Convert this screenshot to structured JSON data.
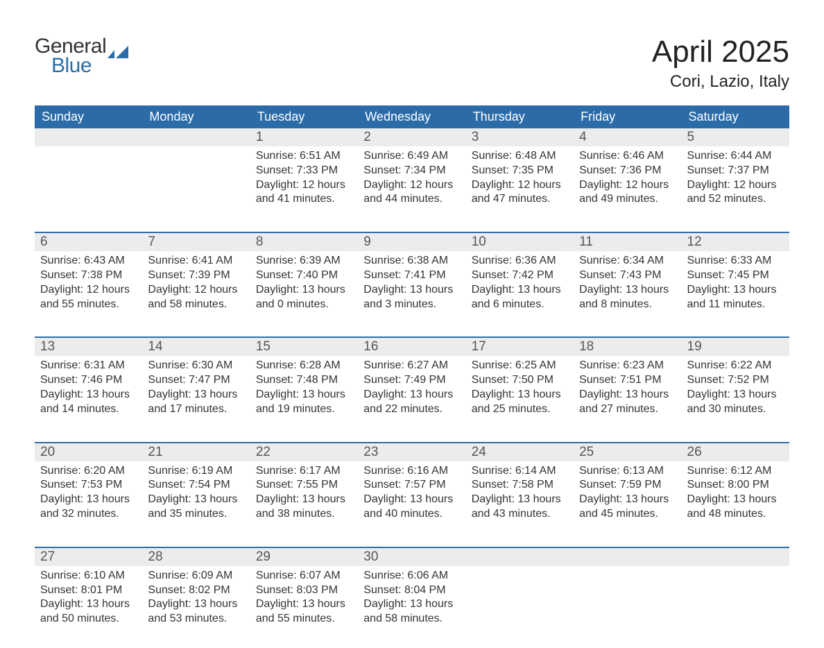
{
  "logo": {
    "text1": "General",
    "text2": "Blue",
    "icon_color": "#2b6ca8"
  },
  "title": "April 2025",
  "location": "Cori, Lazio, Italy",
  "colors": {
    "header_bg": "#2b6ca8",
    "header_text": "#ffffff",
    "daynum_bg": "#ececec",
    "daynum_text": "#555555",
    "body_text": "#333333",
    "week_sep": "#2b6ca8",
    "page_bg": "#ffffff"
  },
  "fonts": {
    "title_size": 44,
    "location_size": 24,
    "dow_size": 18,
    "daynum_size": 19,
    "cell_size": 16
  },
  "dow": [
    "Sunday",
    "Monday",
    "Tuesday",
    "Wednesday",
    "Thursday",
    "Friday",
    "Saturday"
  ],
  "weeks": [
    [
      null,
      null,
      {
        "n": "1",
        "sr": "6:51 AM",
        "ss": "7:33 PM",
        "dl": "12 hours and 41 minutes."
      },
      {
        "n": "2",
        "sr": "6:49 AM",
        "ss": "7:34 PM",
        "dl": "12 hours and 44 minutes."
      },
      {
        "n": "3",
        "sr": "6:48 AM",
        "ss": "7:35 PM",
        "dl": "12 hours and 47 minutes."
      },
      {
        "n": "4",
        "sr": "6:46 AM",
        "ss": "7:36 PM",
        "dl": "12 hours and 49 minutes."
      },
      {
        "n": "5",
        "sr": "6:44 AM",
        "ss": "7:37 PM",
        "dl": "12 hours and 52 minutes."
      }
    ],
    [
      {
        "n": "6",
        "sr": "6:43 AM",
        "ss": "7:38 PM",
        "dl": "12 hours and 55 minutes."
      },
      {
        "n": "7",
        "sr": "6:41 AM",
        "ss": "7:39 PM",
        "dl": "12 hours and 58 minutes."
      },
      {
        "n": "8",
        "sr": "6:39 AM",
        "ss": "7:40 PM",
        "dl": "13 hours and 0 minutes."
      },
      {
        "n": "9",
        "sr": "6:38 AM",
        "ss": "7:41 PM",
        "dl": "13 hours and 3 minutes."
      },
      {
        "n": "10",
        "sr": "6:36 AM",
        "ss": "7:42 PM",
        "dl": "13 hours and 6 minutes."
      },
      {
        "n": "11",
        "sr": "6:34 AM",
        "ss": "7:43 PM",
        "dl": "13 hours and 8 minutes."
      },
      {
        "n": "12",
        "sr": "6:33 AM",
        "ss": "7:45 PM",
        "dl": "13 hours and 11 minutes."
      }
    ],
    [
      {
        "n": "13",
        "sr": "6:31 AM",
        "ss": "7:46 PM",
        "dl": "13 hours and 14 minutes."
      },
      {
        "n": "14",
        "sr": "6:30 AM",
        "ss": "7:47 PM",
        "dl": "13 hours and 17 minutes."
      },
      {
        "n": "15",
        "sr": "6:28 AM",
        "ss": "7:48 PM",
        "dl": "13 hours and 19 minutes."
      },
      {
        "n": "16",
        "sr": "6:27 AM",
        "ss": "7:49 PM",
        "dl": "13 hours and 22 minutes."
      },
      {
        "n": "17",
        "sr": "6:25 AM",
        "ss": "7:50 PM",
        "dl": "13 hours and 25 minutes."
      },
      {
        "n": "18",
        "sr": "6:23 AM",
        "ss": "7:51 PM",
        "dl": "13 hours and 27 minutes."
      },
      {
        "n": "19",
        "sr": "6:22 AM",
        "ss": "7:52 PM",
        "dl": "13 hours and 30 minutes."
      }
    ],
    [
      {
        "n": "20",
        "sr": "6:20 AM",
        "ss": "7:53 PM",
        "dl": "13 hours and 32 minutes."
      },
      {
        "n": "21",
        "sr": "6:19 AM",
        "ss": "7:54 PM",
        "dl": "13 hours and 35 minutes."
      },
      {
        "n": "22",
        "sr": "6:17 AM",
        "ss": "7:55 PM",
        "dl": "13 hours and 38 minutes."
      },
      {
        "n": "23",
        "sr": "6:16 AM",
        "ss": "7:57 PM",
        "dl": "13 hours and 40 minutes."
      },
      {
        "n": "24",
        "sr": "6:14 AM",
        "ss": "7:58 PM",
        "dl": "13 hours and 43 minutes."
      },
      {
        "n": "25",
        "sr": "6:13 AM",
        "ss": "7:59 PM",
        "dl": "13 hours and 45 minutes."
      },
      {
        "n": "26",
        "sr": "6:12 AM",
        "ss": "8:00 PM",
        "dl": "13 hours and 48 minutes."
      }
    ],
    [
      {
        "n": "27",
        "sr": "6:10 AM",
        "ss": "8:01 PM",
        "dl": "13 hours and 50 minutes."
      },
      {
        "n": "28",
        "sr": "6:09 AM",
        "ss": "8:02 PM",
        "dl": "13 hours and 53 minutes."
      },
      {
        "n": "29",
        "sr": "6:07 AM",
        "ss": "8:03 PM",
        "dl": "13 hours and 55 minutes."
      },
      {
        "n": "30",
        "sr": "6:06 AM",
        "ss": "8:04 PM",
        "dl": "13 hours and 58 minutes."
      },
      null,
      null,
      null
    ]
  ],
  "labels": {
    "sunrise": "Sunrise: ",
    "sunset": "Sunset: ",
    "daylight": "Daylight: "
  }
}
